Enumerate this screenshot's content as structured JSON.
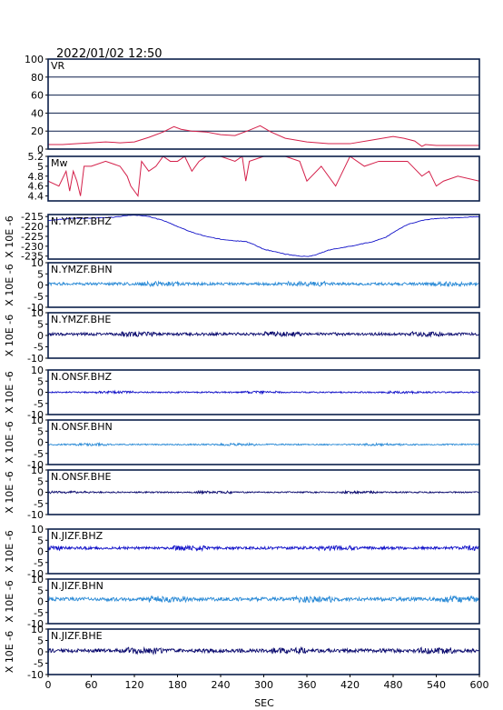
{
  "timestamp": "2022/01/02 12:50",
  "xlabel": "SEC",
  "x_ticks": [
    0,
    60,
    120,
    180,
    240,
    300,
    360,
    420,
    480,
    540,
    600
  ],
  "colors": {
    "frame": "#0b1f4a",
    "red": "#d4204a",
    "blue": "#1010c8",
    "light_blue": "#2a8ad6",
    "navy": "#0a0a6e"
  },
  "chart_data": [
    {
      "type": "line",
      "label": "VR",
      "ylim": [
        0,
        100
      ],
      "yticks": [
        0,
        20,
        40,
        60,
        80,
        100
      ],
      "grid": "horizontal",
      "color": "#d4204a",
      "x": [
        0,
        20,
        40,
        60,
        80,
        100,
        120,
        140,
        160,
        175,
        185,
        200,
        220,
        240,
        260,
        280,
        295,
        310,
        330,
        360,
        390,
        420,
        450,
        480,
        495,
        510,
        520,
        525,
        540,
        570,
        600
      ],
      "y": [
        5,
        5,
        6,
        7,
        8,
        7,
        8,
        13,
        19,
        25,
        22,
        20,
        19,
        16,
        15,
        21,
        26,
        19,
        12,
        8,
        6,
        6,
        10,
        14,
        12,
        9,
        3,
        5,
        4,
        4,
        4
      ]
    },
    {
      "type": "line",
      "label": "Mw",
      "ylim": [
        4.3,
        5.2
      ],
      "yticks": [
        4.4,
        4.6,
        4.8,
        5.0,
        5.2
      ],
      "color": "#d4204a",
      "x": [
        0,
        15,
        25,
        30,
        35,
        40,
        45,
        50,
        60,
        80,
        100,
        110,
        115,
        120,
        125,
        130,
        140,
        150,
        160,
        170,
        180,
        190,
        200,
        210,
        220,
        240,
        260,
        270,
        275,
        280,
        300,
        330,
        350,
        360,
        380,
        400,
        420,
        440,
        460,
        480,
        500,
        520,
        530,
        540,
        550,
        570,
        600
      ],
      "y": [
        4.7,
        4.6,
        4.9,
        4.5,
        4.9,
        4.7,
        4.4,
        5.0,
        5.0,
        5.1,
        5.0,
        4.8,
        4.6,
        4.5,
        4.4,
        5.1,
        4.9,
        5.0,
        5.2,
        5.1,
        5.1,
        5.2,
        4.9,
        5.1,
        5.2,
        5.2,
        5.1,
        5.2,
        4.7,
        5.1,
        5.2,
        5.2,
        5.1,
        4.7,
        5.0,
        4.6,
        5.2,
        5.0,
        5.1,
        5.1,
        5.1,
        4.8,
        4.9,
        4.6,
        4.7,
        4.8,
        4.7
      ]
    },
    {
      "type": "line",
      "label": "N.YMZF.BHZ",
      "ylim": [
        -236.5,
        -214
      ],
      "yticks": [
        -215,
        -220,
        -225,
        -230,
        -235
      ],
      "ylabel": "X 10E -6",
      "color": "#1010c8",
      "x": [
        0,
        30,
        60,
        90,
        110,
        120,
        140,
        160,
        180,
        200,
        220,
        240,
        260,
        275,
        285,
        300,
        330,
        350,
        360,
        370,
        390,
        420,
        450,
        470,
        480,
        500,
        520,
        540,
        570,
        600
      ],
      "y": [
        -217,
        -216,
        -215.8,
        -215.4,
        -214.5,
        -214.2,
        -215,
        -217,
        -220,
        -223,
        -225,
        -226.5,
        -227.3,
        -227.5,
        -229,
        -231.5,
        -234,
        -235,
        -235.2,
        -234.6,
        -232,
        -230,
        -227.8,
        -225.5,
        -223,
        -219,
        -217,
        -216,
        -215.5,
        -215
      ]
    },
    {
      "type": "line",
      "label": "N.YMZF.BHN",
      "ylim": [
        -10,
        10
      ],
      "yticks": [
        10,
        5,
        0,
        -5,
        -10
      ],
      "ylabel": "X 10E -6",
      "color": "#2a8ad6",
      "baseline": 0.5,
      "amplitude": 0.6
    },
    {
      "type": "line",
      "label": "N.YMZF.BHE",
      "ylim": [
        -10,
        10
      ],
      "yticks": [
        10,
        5,
        0,
        -5,
        -10
      ],
      "ylabel": "X 10E -6",
      "color": "#0a0a6e",
      "baseline": 0.6,
      "amplitude": 0.6
    },
    {
      "type": "line",
      "label": "N.ONSF.BHZ",
      "ylim": [
        -10,
        10
      ],
      "yticks": [
        10,
        5,
        0,
        -5,
        -10
      ],
      "ylabel": "X 10E -6",
      "color": "#1010c8",
      "baseline": 0.0,
      "amplitude": 0.3
    },
    {
      "type": "line",
      "label": "N.ONSF.BHN",
      "ylim": [
        -10,
        10
      ],
      "yticks": [
        10,
        5,
        0,
        -5,
        -10
      ],
      "ylabel": "X 10E -6",
      "color": "#2a8ad6",
      "baseline": -1.0,
      "amplitude": 0.3
    },
    {
      "type": "line",
      "label": "N.ONSF.BHE",
      "ylim": [
        -10,
        10
      ],
      "yticks": [
        10,
        5,
        0,
        -5,
        -10
      ],
      "ylabel": "X 10E -6",
      "color": "#0a0a6e",
      "baseline": 0.0,
      "amplitude": 0.3
    },
    {
      "type": "line",
      "label": "N.JIZF.BHZ",
      "ylim": [
        -10,
        10
      ],
      "yticks": [
        10,
        5,
        0,
        -5,
        -10
      ],
      "ylabel": "X 10E -6",
      "color": "#1010c8",
      "baseline": 1.5,
      "amplitude": 0.6
    },
    {
      "type": "line",
      "label": "N.JIZF.BHN",
      "ylim": [
        -10,
        10
      ],
      "yticks": [
        10,
        5,
        0,
        -5,
        -10
      ],
      "ylabel": "X 10E -6",
      "color": "#2a8ad6",
      "baseline": 1.0,
      "amplitude": 0.8
    },
    {
      "type": "line",
      "label": "N.JIZF.BHE",
      "ylim": [
        -10,
        10
      ],
      "yticks": [
        10,
        5,
        0,
        -5,
        -10
      ],
      "ylabel": "X 10E -6",
      "color": "#0a0a6e",
      "baseline": 0.5,
      "amplitude": 0.8
    }
  ]
}
